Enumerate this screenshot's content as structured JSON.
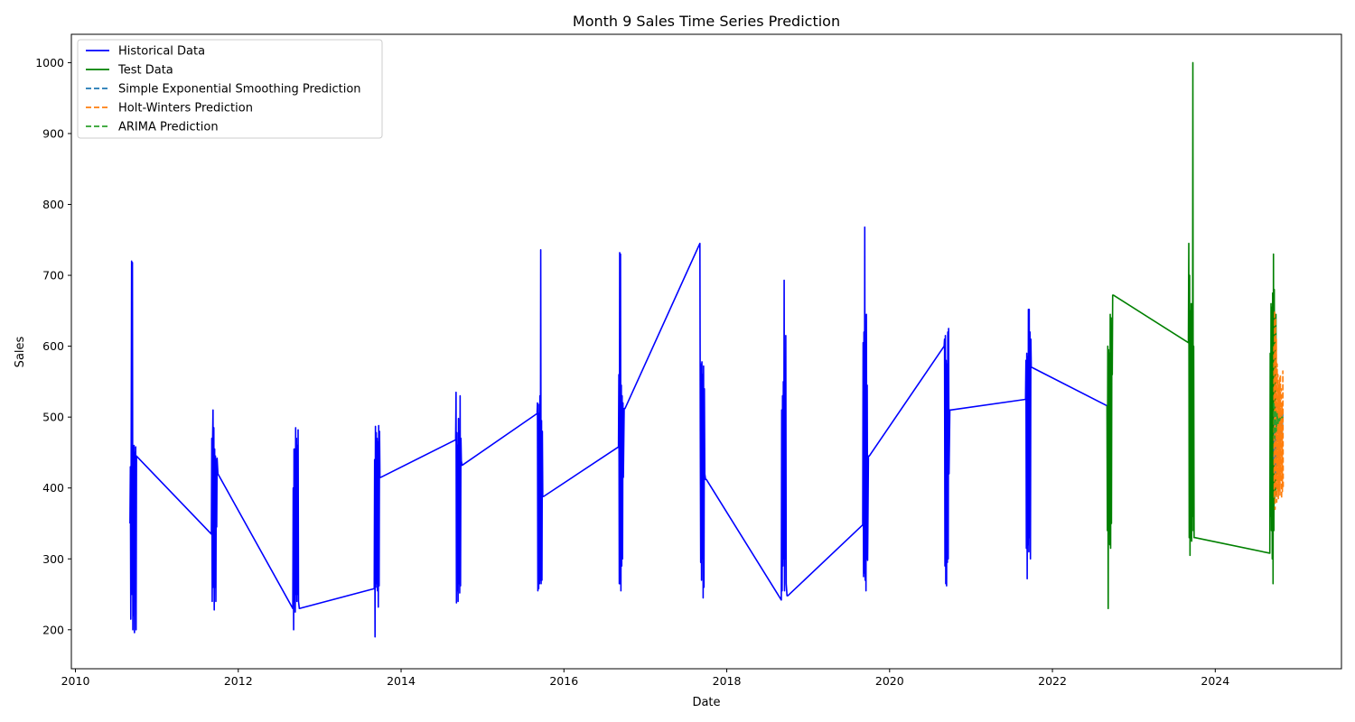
{
  "chart_data": {
    "type": "line",
    "title": "Month 9 Sales Time Series Prediction",
    "xlabel": "Date",
    "ylabel": "Sales",
    "xlim": [
      2009.95,
      2025.55
    ],
    "ylim": [
      145,
      1040
    ],
    "x_ticks": [
      2010,
      2012,
      2014,
      2016,
      2018,
      2020,
      2022,
      2024
    ],
    "x_tick_labels": [
      "2010",
      "2012",
      "2014",
      "2016",
      "2018",
      "2020",
      "2022",
      "2024"
    ],
    "y_ticks": [
      200,
      300,
      400,
      500,
      600,
      700,
      800,
      900,
      1000
    ],
    "y_tick_labels": [
      "200",
      "300",
      "400",
      "500",
      "600",
      "700",
      "800",
      "900",
      "1000"
    ],
    "grid": false,
    "legend_position": "top-left",
    "series": [
      {
        "name": "Historical Data",
        "color": "#0000ff",
        "style": "solid",
        "points": [
          [
            2010.67,
            350
          ],
          [
            2010.675,
            430
          ],
          [
            2010.68,
            215
          ],
          [
            2010.685,
            465
          ],
          [
            2010.69,
            720
          ],
          [
            2010.695,
            250
          ],
          [
            2010.7,
            718
          ],
          [
            2010.705,
            200
          ],
          [
            2010.71,
            440
          ],
          [
            2010.715,
            220
          ],
          [
            2010.72,
            460
          ],
          [
            2010.725,
            196
          ],
          [
            2010.73,
            450
          ],
          [
            2010.735,
            345
          ],
          [
            2010.74,
            458
          ],
          [
            2010.745,
            200
          ],
          [
            2010.75,
            445
          ],
          [
            2011.67,
            335
          ],
          [
            2011.675,
            470
          ],
          [
            2011.68,
            240
          ],
          [
            2011.685,
            468
          ],
          [
            2011.69,
            510
          ],
          [
            2011.695,
            260
          ],
          [
            2011.7,
            485
          ],
          [
            2011.705,
            228
          ],
          [
            2011.71,
            455
          ],
          [
            2011.715,
            260
          ],
          [
            2011.72,
            445
          ],
          [
            2011.725,
            240
          ],
          [
            2011.73,
            440
          ],
          [
            2011.735,
            345
          ],
          [
            2011.74,
            442
          ],
          [
            2011.75,
            420
          ],
          [
            2012.67,
            230
          ],
          [
            2012.675,
            400
          ],
          [
            2012.68,
            200
          ],
          [
            2012.685,
            455
          ],
          [
            2012.69,
            240
          ],
          [
            2012.695,
            455
          ],
          [
            2012.7,
            225
          ],
          [
            2012.705,
            485
          ],
          [
            2012.71,
            250
          ],
          [
            2012.715,
            470
          ],
          [
            2012.72,
            240
          ],
          [
            2012.725,
            460
          ],
          [
            2012.73,
            250
          ],
          [
            2012.735,
            482
          ],
          [
            2012.74,
            240
          ],
          [
            2012.75,
            230
          ],
          [
            2013.67,
            258
          ],
          [
            2013.675,
            440
          ],
          [
            2013.68,
            190
          ],
          [
            2013.685,
            487
          ],
          [
            2013.69,
            260
          ],
          [
            2013.695,
            478
          ],
          [
            2013.7,
            265
          ],
          [
            2013.705,
            470
          ],
          [
            2013.71,
            255
          ],
          [
            2013.715,
            465
          ],
          [
            2013.72,
            232
          ],
          [
            2013.725,
            488
          ],
          [
            2013.73,
            262
          ],
          [
            2013.735,
            480
          ],
          [
            2013.74,
            415
          ],
          [
            2013.75,
            415
          ],
          [
            2014.67,
            468
          ],
          [
            2014.675,
            535
          ],
          [
            2014.68,
            238
          ],
          [
            2014.685,
            478
          ],
          [
            2014.69,
            255
          ],
          [
            2014.695,
            460
          ],
          [
            2014.7,
            240
          ],
          [
            2014.705,
            498
          ],
          [
            2014.71,
            265
          ],
          [
            2014.715,
            480
          ],
          [
            2014.72,
            252
          ],
          [
            2014.725,
            530
          ],
          [
            2014.73,
            262
          ],
          [
            2014.735,
            470
          ],
          [
            2014.74,
            438
          ],
          [
            2014.75,
            432
          ],
          [
            2015.67,
            505
          ],
          [
            2015.675,
            520
          ],
          [
            2015.68,
            255
          ],
          [
            2015.685,
            518
          ],
          [
            2015.69,
            258
          ],
          [
            2015.695,
            505
          ],
          [
            2015.7,
            265
          ],
          [
            2015.705,
            530
          ],
          [
            2015.71,
            270
          ],
          [
            2015.715,
            736
          ],
          [
            2015.72,
            265
          ],
          [
            2015.725,
            495
          ],
          [
            2015.73,
            270
          ],
          [
            2015.735,
            480
          ],
          [
            2015.74,
            388
          ],
          [
            2015.75,
            388
          ],
          [
            2016.67,
            458
          ],
          [
            2016.675,
            560
          ],
          [
            2016.68,
            265
          ],
          [
            2016.685,
            732
          ],
          [
            2016.69,
            265
          ],
          [
            2016.695,
            730
          ],
          [
            2016.7,
            255
          ],
          [
            2016.705,
            545
          ],
          [
            2016.71,
            290
          ],
          [
            2016.715,
            530
          ],
          [
            2016.72,
            300
          ],
          [
            2016.725,
            520
          ],
          [
            2016.73,
            415
          ],
          [
            2016.74,
            512
          ],
          [
            2016.75,
            512
          ],
          [
            2017.67,
            745
          ],
          [
            2017.675,
            480
          ],
          [
            2017.68,
            295
          ],
          [
            2017.685,
            575
          ],
          [
            2017.69,
            270
          ],
          [
            2017.695,
            578
          ],
          [
            2017.7,
            300
          ],
          [
            2017.705,
            560
          ],
          [
            2017.71,
            245
          ],
          [
            2017.715,
            572
          ],
          [
            2017.72,
            260
          ],
          [
            2017.725,
            540
          ],
          [
            2017.73,
            420
          ],
          [
            2017.74,
            412
          ],
          [
            2017.75,
            412
          ],
          [
            2018.67,
            242
          ],
          [
            2018.675,
            510
          ],
          [
            2018.68,
            255
          ],
          [
            2018.685,
            530
          ],
          [
            2018.69,
            290
          ],
          [
            2018.695,
            550
          ],
          [
            2018.7,
            300
          ],
          [
            2018.705,
            693
          ],
          [
            2018.71,
            255
          ],
          [
            2018.715,
            540
          ],
          [
            2018.72,
            300
          ],
          [
            2018.725,
            615
          ],
          [
            2018.73,
            265
          ],
          [
            2018.74,
            248
          ],
          [
            2018.75,
            248
          ],
          [
            2019.67,
            348
          ],
          [
            2019.675,
            605
          ],
          [
            2019.68,
            275
          ],
          [
            2019.685,
            620
          ],
          [
            2019.69,
            280
          ],
          [
            2019.695,
            768
          ],
          [
            2019.7,
            270
          ],
          [
            2019.705,
            590
          ],
          [
            2019.71,
            255
          ],
          [
            2019.715,
            645
          ],
          [
            2019.72,
            300
          ],
          [
            2019.725,
            545
          ],
          [
            2019.73,
            298
          ],
          [
            2019.74,
            445
          ],
          [
            2019.75,
            445
          ],
          [
            2020.67,
            600
          ],
          [
            2020.675,
            610
          ],
          [
            2020.68,
            290
          ],
          [
            2020.685,
            615
          ],
          [
            2020.69,
            265
          ],
          [
            2020.695,
            580
          ],
          [
            2020.7,
            262
          ],
          [
            2020.705,
            575
          ],
          [
            2020.71,
            295
          ],
          [
            2020.715,
            620
          ],
          [
            2020.72,
            300
          ],
          [
            2020.725,
            625
          ],
          [
            2020.73,
            420
          ],
          [
            2020.74,
            510
          ],
          [
            2020.75,
            510
          ],
          [
            2021.67,
            525
          ],
          [
            2021.675,
            580
          ],
          [
            2021.68,
            315
          ],
          [
            2021.685,
            590
          ],
          [
            2021.69,
            272
          ],
          [
            2021.695,
            585
          ],
          [
            2021.7,
            320
          ],
          [
            2021.705,
            652
          ],
          [
            2021.71,
            310
          ],
          [
            2021.715,
            652
          ],
          [
            2021.72,
            330
          ],
          [
            2021.725,
            620
          ],
          [
            2021.73,
            300
          ],
          [
            2021.735,
            610
          ],
          [
            2021.74,
            570
          ],
          [
            2021.75,
            570
          ],
          [
            2022.67,
            516
          ]
        ]
      },
      {
        "name": "Test Data",
        "color": "#008000",
        "style": "solid",
        "points": [
          [
            2022.67,
            516
          ],
          [
            2022.675,
            340
          ],
          [
            2022.68,
            600
          ],
          [
            2022.685,
            230
          ],
          [
            2022.69,
            595
          ],
          [
            2022.695,
            335
          ],
          [
            2022.7,
            590
          ],
          [
            2022.705,
            320
          ],
          [
            2022.71,
            645
          ],
          [
            2022.715,
            315
          ],
          [
            2022.72,
            640
          ],
          [
            2022.725,
            350
          ],
          [
            2022.73,
            625
          ],
          [
            2022.735,
            560
          ],
          [
            2022.74,
            672
          ],
          [
            2022.75,
            672
          ],
          [
            2023.67,
            605
          ],
          [
            2023.675,
            745
          ],
          [
            2023.68,
            330
          ],
          [
            2023.685,
            700
          ],
          [
            2023.69,
            305
          ],
          [
            2023.695,
            650
          ],
          [
            2023.7,
            330
          ],
          [
            2023.705,
            660
          ],
          [
            2023.71,
            325
          ],
          [
            2023.715,
            600
          ],
          [
            2023.72,
            360
          ],
          [
            2023.725,
            1000
          ],
          [
            2023.73,
            340
          ],
          [
            2023.735,
            600
          ],
          [
            2023.74,
            330
          ],
          [
            2023.75,
            330
          ],
          [
            2024.67,
            308
          ],
          [
            2024.675,
            590
          ],
          [
            2024.68,
            360
          ],
          [
            2024.685,
            660
          ],
          [
            2024.69,
            340
          ],
          [
            2024.695,
            655
          ],
          [
            2024.7,
            300
          ],
          [
            2024.705,
            675
          ],
          [
            2024.71,
            265
          ],
          [
            2024.715,
            730
          ],
          [
            2024.72,
            340
          ],
          [
            2024.725,
            680
          ],
          [
            2024.73,
            380
          ],
          [
            2024.735,
            640
          ],
          [
            2024.74,
            390
          ],
          [
            2024.745,
            645
          ],
          [
            2024.75,
            410
          ]
        ]
      },
      {
        "name": "Simple Exponential Smoothing Prediction",
        "color": "#1f77b4",
        "style": "dashed",
        "points": [
          [
            2024.72,
            440
          ],
          [
            2024.73,
            500
          ],
          [
            2024.74,
            420
          ],
          [
            2024.75,
            520
          ],
          [
            2024.76,
            430
          ],
          [
            2024.77,
            510
          ],
          [
            2024.78,
            440
          ],
          [
            2024.79,
            500
          ],
          [
            2024.8,
            460
          ],
          [
            2024.81,
            510
          ],
          [
            2024.82,
            470
          ],
          [
            2024.83,
            505
          ]
        ]
      },
      {
        "name": "Holt-Winters Prediction",
        "color": "#ff7f0e",
        "style": "dashed",
        "points": [
          [
            2024.72,
            600
          ],
          [
            2024.725,
            385
          ],
          [
            2024.73,
            650
          ],
          [
            2024.735,
            370
          ],
          [
            2024.74,
            640
          ],
          [
            2024.745,
            400
          ],
          [
            2024.75,
            610
          ],
          [
            2024.755,
            380
          ],
          [
            2024.76,
            575
          ],
          [
            2024.765,
            395
          ],
          [
            2024.77,
            560
          ],
          [
            2024.775,
            385
          ],
          [
            2024.78,
            545
          ],
          [
            2024.785,
            395
          ],
          [
            2024.79,
            555
          ],
          [
            2024.795,
            390
          ],
          [
            2024.8,
            560
          ],
          [
            2024.805,
            410
          ],
          [
            2024.81,
            540
          ],
          [
            2024.815,
            385
          ],
          [
            2024.82,
            520
          ],
          [
            2024.825,
            395
          ],
          [
            2024.83,
            565
          ],
          [
            2024.835,
            400
          ]
        ]
      },
      {
        "name": "ARIMA Prediction",
        "color": "#2ca02c",
        "style": "dashed",
        "points": [
          [
            2024.72,
            520
          ],
          [
            2024.73,
            470
          ],
          [
            2024.74,
            510
          ],
          [
            2024.75,
            480
          ],
          [
            2024.76,
            505
          ],
          [
            2024.77,
            490
          ],
          [
            2024.78,
            500
          ],
          [
            2024.79,
            495
          ],
          [
            2024.8,
            500
          ],
          [
            2024.81,
            498
          ],
          [
            2024.82,
            500
          ],
          [
            2024.83,
            499
          ]
        ]
      }
    ]
  }
}
